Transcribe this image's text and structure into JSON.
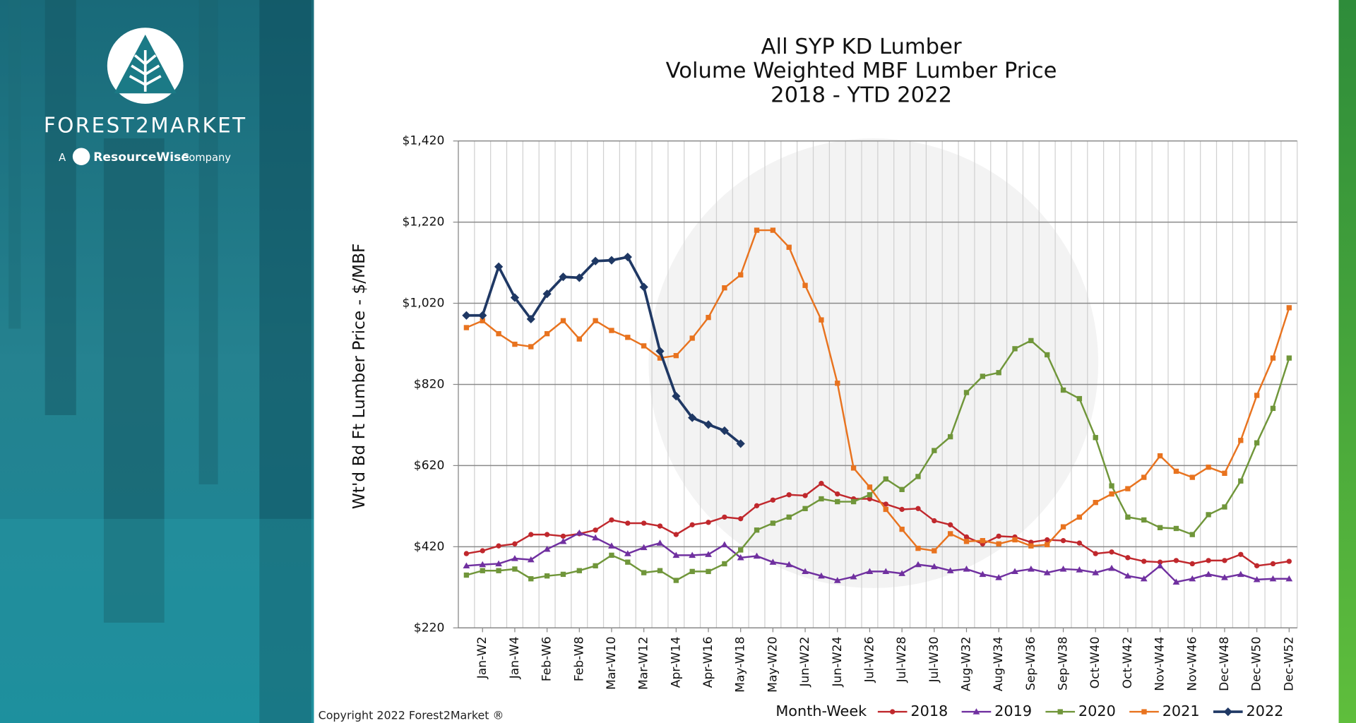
{
  "brand": {
    "name": "FOREST2MARKET",
    "prefix": "A",
    "partner": "ResourceWise",
    "suffix": "Company"
  },
  "copyright": "Copyright 2022 Forest2Market ®",
  "chart_data": {
    "type": "line",
    "title": [
      "All SYP KD Lumber",
      "Volume Weighted MBF Lumber Price",
      "2018 - YTD 2022"
    ],
    "y_label": "Wt'd Bd Ft Lumber Price - $/MBF",
    "legend_title": "Month-Week",
    "legend": "bottom",
    "grid": true,
    "categories": [
      null,
      "Jan-W2",
      null,
      "Jan-W4",
      null,
      "Feb-W6",
      null,
      "Feb-W8",
      null,
      "Mar-W10",
      null,
      "Mar-W12",
      null,
      "Apr-W14",
      null,
      "Apr-W16",
      null,
      "May-W18",
      null,
      "May-W20",
      null,
      "Jun-W22",
      null,
      "Jun-W24",
      null,
      "Jul-W26",
      null,
      "Jul-W28",
      null,
      "Jul-W30",
      null,
      "Aug-W32",
      null,
      "Aug-W34",
      null,
      "Sep-W36",
      null,
      "Sep-W38",
      null,
      "Oct-W40",
      null,
      "Oct-W42",
      null,
      "Nov-W44",
      null,
      "Nov-W46",
      null,
      "Dec-W48",
      null,
      "Dec-W50",
      null,
      "Dec-W52"
    ],
    "ylim": [
      220,
      1420
    ],
    "yticks": [
      {
        "value": 220,
        "label": "$220"
      },
      {
        "value": 420,
        "label": "$420"
      },
      {
        "value": 620,
        "label": "$620"
      },
      {
        "value": 820,
        "label": "$820"
      },
      {
        "value": 1020,
        "label": "$1,020"
      },
      {
        "value": 1220,
        "label": "$1,220"
      },
      {
        "value": 1420,
        "label": "$1,420"
      }
    ],
    "series": [
      {
        "name": "2018",
        "color": "#c0282d",
        "marker": "circle",
        "values": [
          403,
          410,
          422,
          427,
          450,
          450,
          446,
          452,
          461,
          486,
          478,
          478,
          471,
          450,
          474,
          480,
          493,
          489,
          521,
          535,
          548,
          546,
          576,
          550,
          538,
          538,
          525,
          512,
          514,
          484,
          474,
          444,
          427,
          446,
          444,
          431,
          437,
          435,
          429,
          403,
          407,
          393,
          384,
          382,
          386,
          378,
          386,
          386,
          401,
          373,
          378,
          384
        ]
      },
      {
        "name": "2019",
        "color": "#7030a0",
        "marker": "triangle",
        "values": [
          373,
          376,
          378,
          391,
          388,
          414,
          433,
          454,
          442,
          422,
          403,
          418,
          429,
          399,
          399,
          401,
          425,
          393,
          397,
          382,
          376,
          359,
          348,
          337,
          346,
          359,
          359,
          354,
          376,
          371,
          361,
          365,
          352,
          344,
          359,
          365,
          356,
          365,
          363,
          356,
          367,
          348,
          341,
          373,
          333,
          341,
          352,
          344,
          352,
          339,
          341,
          341
        ]
      },
      {
        "name": "2020",
        "color": "#70963a",
        "marker": "square",
        "values": [
          350,
          361,
          361,
          365,
          341,
          348,
          352,
          361,
          373,
          399,
          382,
          356,
          361,
          337,
          359,
          359,
          378,
          412,
          461,
          478,
          493,
          514,
          538,
          531,
          531,
          548,
          587,
          561,
          593,
          657,
          691,
          800,
          840,
          849,
          908,
          928,
          893,
          806,
          785,
          689,
          570,
          493,
          486,
          467,
          465,
          450,
          499,
          518,
          582,
          676,
          761,
          885
        ]
      },
      {
        "name": "2021",
        "color": "#e8731f",
        "marker": "square",
        "values": [
          960,
          977,
          945,
          919,
          913,
          945,
          977,
          932,
          977,
          953,
          936,
          915,
          885,
          891,
          934,
          985,
          1058,
          1090,
          1200,
          1200,
          1158,
          1064,
          979,
          823,
          614,
          567,
          512,
          463,
          416,
          410,
          452,
          433,
          435,
          427,
          437,
          422,
          425,
          469,
          493,
          529,
          550,
          563,
          591,
          644,
          606,
          591,
          616,
          601,
          682,
          793,
          885,
          1009
        ]
      },
      {
        "name": "2022",
        "color": "#1f3864",
        "marker": "diamond",
        "values": [
          990,
          990,
          1110,
          1034,
          981,
          1043,
          1085,
          1083,
          1124,
          1126,
          1134,
          1060,
          902,
          791,
          738,
          721,
          706,
          674,
          null,
          null,
          null,
          null,
          null,
          null,
          null,
          null,
          null,
          null,
          null,
          null,
          null,
          null,
          null,
          null,
          null,
          null,
          null,
          null,
          null,
          null,
          null,
          null,
          null,
          null,
          null,
          null,
          null,
          null,
          null,
          null,
          null,
          null
        ]
      }
    ]
  }
}
